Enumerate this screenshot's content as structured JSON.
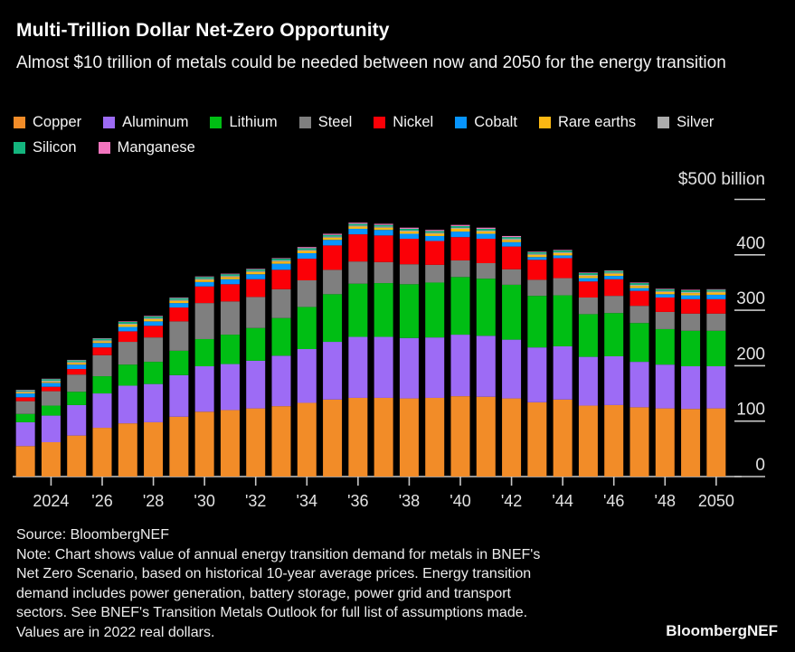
{
  "header": {
    "title": "Multi-Trillion Dollar Net-Zero Opportunity",
    "subtitle": "Almost $10 trillion of metals could be needed between now and 2050 for the energy transition"
  },
  "legend": {
    "items": [
      {
        "label": "Copper",
        "color": "#F28C28"
      },
      {
        "label": "Aluminum",
        "color": "#9D6BF5"
      },
      {
        "label": "Lithium",
        "color": "#00BE14"
      },
      {
        "label": "Steel",
        "color": "#7F7F7F"
      },
      {
        "label": "Nickel",
        "color": "#FB0007"
      },
      {
        "label": "Cobalt",
        "color": "#0795FE"
      },
      {
        "label": "Rare earths",
        "color": "#FCB813"
      },
      {
        "label": "Silver",
        "color": "#ACACAC"
      },
      {
        "label": "Silicon",
        "color": "#14B57E"
      },
      {
        "label": "Manganese",
        "color": "#F375BE"
      }
    ]
  },
  "chart_data": {
    "type": "bar",
    "stacked": true,
    "title": "Multi-Trillion Dollar Net-Zero Opportunity",
    "x": [
      2023,
      2024,
      2025,
      2026,
      2027,
      2028,
      2029,
      2030,
      2031,
      2032,
      2033,
      2034,
      2035,
      2036,
      2037,
      2038,
      2039,
      2040,
      2041,
      2042,
      2043,
      2044,
      2045,
      2046,
      2047,
      2048,
      2049,
      2050
    ],
    "x_tick_labels": [
      "2024",
      "'26",
      "'28",
      "'30",
      "'32",
      "'34",
      "'36",
      "'38",
      "'40",
      "'42",
      "'44",
      "'46",
      "'48",
      "2050"
    ],
    "x_tick_indices": [
      1,
      3,
      5,
      7,
      9,
      11,
      13,
      15,
      17,
      19,
      21,
      23,
      25,
      27
    ],
    "y_axis": {
      "unit_label": "$500 billion",
      "tick_labels": [
        "400",
        "300",
        "200",
        "100",
        "0"
      ],
      "tick_values": [
        500,
        400,
        300,
        200,
        100,
        0
      ],
      "ylim": [
        0,
        500
      ],
      "units": "billion USD, 2022 real dollars"
    },
    "legend_position": "top",
    "grid": false,
    "series": [
      {
        "name": "Copper",
        "color": "#F28C28",
        "values": [
          55,
          62,
          74,
          88,
          96,
          98,
          108,
          117,
          120,
          123,
          127,
          133,
          139,
          142,
          142,
          141,
          142,
          145,
          144,
          141,
          134,
          139,
          128,
          129,
          125,
          123,
          122,
          123
        ]
      },
      {
        "name": "Aluminum",
        "color": "#9D6BF5",
        "values": [
          43,
          48,
          55,
          62,
          68,
          69,
          75,
          82,
          83,
          86,
          91,
          97,
          104,
          110,
          110,
          109,
          109,
          111,
          110,
          106,
          99,
          96,
          88,
          88,
          82,
          79,
          77,
          76
        ]
      },
      {
        "name": "Lithium",
        "color": "#00BE14",
        "values": [
          15,
          18,
          24,
          31,
          38,
          40,
          44,
          49,
          53,
          59,
          68,
          76,
          86,
          96,
          97,
          97,
          99,
          104,
          103,
          99,
          93,
          92,
          77,
          78,
          70,
          64,
          64,
          64
        ]
      },
      {
        "name": "Steel",
        "color": "#7F7F7F",
        "values": [
          23,
          26,
          31,
          38,
          41,
          44,
          53,
          65,
          60,
          56,
          52,
          48,
          44,
          40,
          38,
          36,
          32,
          30,
          28,
          28,
          29,
          31,
          30,
          31,
          31,
          31,
          31,
          31
        ]
      },
      {
        "name": "Nickel",
        "color": "#FB0007",
        "values": [
          7,
          8,
          10,
          14,
          19,
          21,
          25,
          30,
          31,
          32,
          35,
          39,
          44,
          49,
          48,
          46,
          43,
          42,
          44,
          41,
          36,
          36,
          29,
          30,
          27,
          26,
          26,
          26
        ]
      },
      {
        "name": "Cobalt",
        "color": "#0795FE",
        "values": [
          7,
          7,
          8,
          8,
          8,
          8,
          8,
          8,
          9,
          9,
          11,
          10,
          10,
          10,
          10,
          9,
          9,
          10,
          9,
          8,
          5,
          5,
          6,
          6,
          5,
          6,
          7,
          8
        ]
      },
      {
        "name": "Rare earths",
        "color": "#FCB813",
        "values": [
          2,
          2,
          3,
          3,
          4,
          4,
          4,
          4,
          4,
          4,
          4,
          4,
          4,
          4,
          4,
          4,
          4,
          5,
          4,
          4,
          4,
          4,
          4,
          4,
          4,
          4,
          4,
          4
        ]
      },
      {
        "name": "Silver",
        "color": "#ACACAC",
        "values": [
          2,
          2,
          2,
          2,
          2,
          2,
          2,
          2,
          2,
          2,
          2,
          2,
          2,
          2,
          2,
          2,
          2,
          2,
          2,
          2,
          2,
          2,
          2,
          2,
          2,
          2,
          2,
          2
        ]
      },
      {
        "name": "Silicon",
        "color": "#14B57E",
        "values": [
          2,
          3,
          3,
          3,
          3,
          3,
          3,
          3,
          3,
          3,
          3,
          3,
          3,
          3,
          3,
          3,
          3,
          3,
          3,
          3,
          3,
          3,
          3,
          3,
          3,
          3,
          3,
          3
        ]
      },
      {
        "name": "Manganese",
        "color": "#F375BE",
        "values": [
          0.5,
          0.5,
          0.5,
          0.5,
          1,
          1,
          1,
          1,
          1,
          1,
          1,
          2,
          2,
          2,
          2,
          2,
          2,
          2,
          2,
          2,
          1,
          1,
          1,
          1,
          1,
          1,
          1,
          1
        ]
      }
    ]
  },
  "notes": {
    "lines": [
      "Source: BloombergNEF",
      "Note: Chart shows value of annual energy transition demand for metals in BNEF's",
      "Net Zero Scenario, based on historical 10-year average prices. Energy transition",
      "demand includes power generation, battery storage, power grid and transport",
      "sectors. See BNEF's Transition Metals Outlook for full list of assumptions made.",
      "Values are in 2022 real dollars."
    ]
  },
  "brand": "BloombergNEF"
}
